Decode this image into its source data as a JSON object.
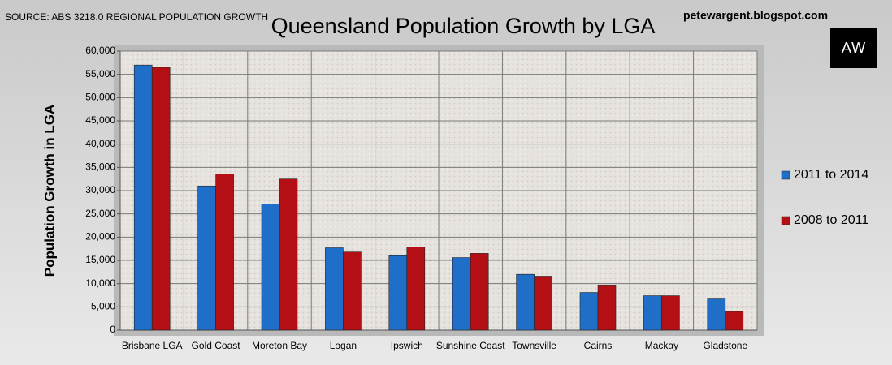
{
  "source": "SOURCE: ABS 3218.0 REGIONAL POPULATION GROWTH",
  "website": "petewargent.blogspot.com",
  "logo": "AW",
  "chart_data": {
    "type": "bar",
    "title": "Queensland Population Growth by LGA",
    "y_label": "Population Growth in LGA",
    "categories": [
      "Brisbane LGA",
      "Gold Coast",
      "Moreton Bay",
      "Logan",
      "Ipswich",
      "Sunshine Coast",
      "Townsville",
      "Cairns",
      "Mackay",
      "Gladstone"
    ],
    "series": [
      {
        "name": "2011 to 2014",
        "color": "#1f6fc9",
        "values": [
          57000,
          31000,
          27100,
          17700,
          16000,
          15600,
          12000,
          8100,
          7400,
          6700
        ]
      },
      {
        "name": "2008 to 2011",
        "color": "#b30f14",
        "values": [
          56500,
          33600,
          32500,
          16800,
          17900,
          16500,
          11600,
          9700,
          7400,
          4000
        ]
      }
    ],
    "ylim": [
      0,
      60000
    ],
    "yticks": [
      0,
      {
        "value": 5000,
        "label": "5,000"
      },
      {
        "value": 10000,
        "label": "10,000"
      },
      {
        "value": 15000,
        "label": "15,000"
      },
      {
        "value": 20000,
        "label": "20,000"
      },
      {
        "value": 25000,
        "label": "25,000"
      },
      {
        "value": 30000,
        "label": "30,000"
      },
      {
        "value": 35000,
        "label": "35,000"
      },
      {
        "value": 40000,
        "label": "40,000"
      },
      {
        "value": 45000,
        "label": "45,000"
      },
      {
        "value": 50000,
        "label": "50,000"
      },
      {
        "value": 55000,
        "label": "55,000"
      },
      {
        "value": 60000,
        "label": "60,000"
      }
    ],
    "grid": true,
    "legend": "right"
  }
}
